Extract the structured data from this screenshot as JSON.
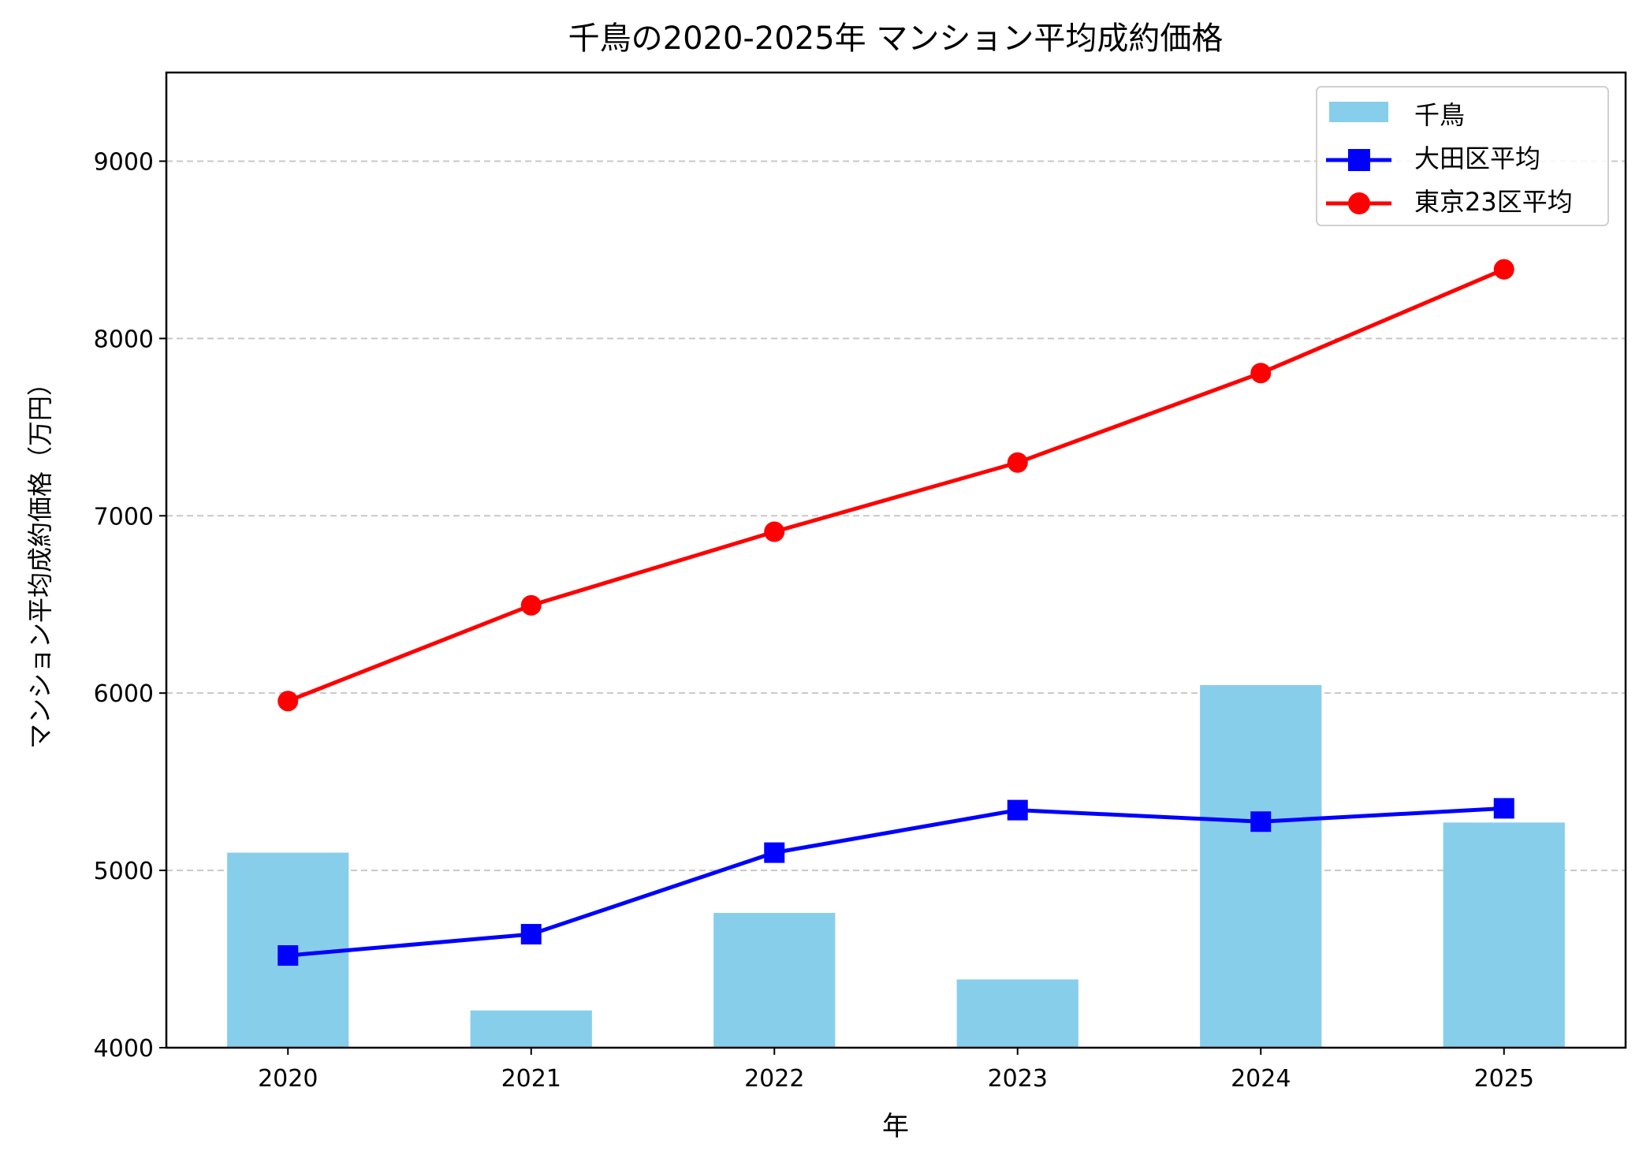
{
  "chart_data": {
    "type": "bar+line",
    "title": "千鳥の2020-2025年 マンション平均成約価格",
    "xlabel": "年",
    "ylabel": "マンション平均成約価格（万円）",
    "categories": [
      "2020",
      "2021",
      "2022",
      "2023",
      "2024",
      "2025"
    ],
    "ylim": [
      4000,
      9500
    ],
    "yticks": [
      4000,
      5000,
      6000,
      7000,
      8000,
      9000
    ],
    "grid": "y-dashed",
    "legend_position": "top-right",
    "series": [
      {
        "name": "千鳥",
        "type": "bar",
        "color": "#87CEEB",
        "values": [
          5100,
          4210,
          4760,
          4385,
          6045,
          5270
        ]
      },
      {
        "name": "大田区平均",
        "type": "line",
        "marker": "square",
        "color": "#0000FF",
        "values": [
          4520,
          4640,
          5100,
          5340,
          5275,
          5350
        ]
      },
      {
        "name": "東京23区平均",
        "type": "line",
        "marker": "circle",
        "color": "#FF0000",
        "values": [
          5955,
          6495,
          6910,
          7300,
          7805,
          8390
        ]
      }
    ]
  }
}
